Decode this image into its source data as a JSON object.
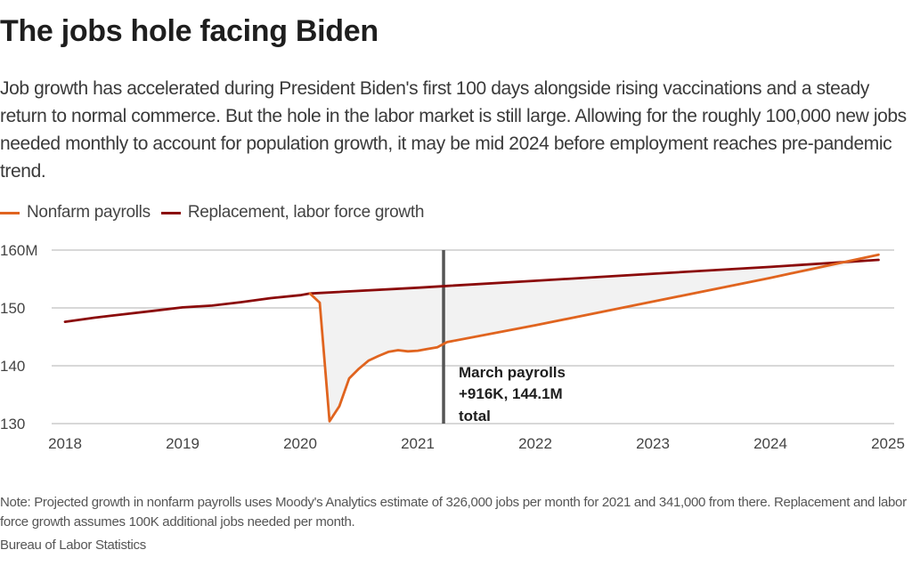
{
  "header": {
    "title": "The jobs hole facing Biden",
    "subtitle": "Job growth has accelerated during President Biden's first 100 days alongside rising vaccinations and a steady return to normal commerce. But the hole in the labor market is still large. Allowing for the roughly 100,000 new jobs needed monthly to account for population growth, it may be mid 2024 before employment reaches pre-pandemic trend."
  },
  "legend": {
    "items": [
      {
        "label": "Nonfarm payrolls",
        "color": "#e0641f"
      },
      {
        "label": "Replacement, labor force growth",
        "color": "#8b0a0a"
      }
    ]
  },
  "footer": {
    "note": "Note: Projected growth in nonfarm payrolls uses Moody's Analytics estimate of 326,000 jobs per month for 2021 and 341,000 from there. Replacement and labor force growth assumes 100K additional jobs needed per month.",
    "source": "Bureau of Labor Statistics"
  },
  "chart_data": {
    "type": "line",
    "title": "The jobs hole facing Biden",
    "xlabel": "",
    "ylabel": "",
    "xlim": [
      2018,
      2025
    ],
    "ylim": [
      130,
      160
    ],
    "x_ticks": [
      2018,
      2019,
      2020,
      2021,
      2022,
      2023,
      2024,
      2025
    ],
    "x_tick_labels": [
      "2018",
      "2019",
      "2020",
      "2021",
      "2022",
      "2023",
      "2024",
      "2025"
    ],
    "y_ticks": [
      130,
      140,
      150,
      160
    ],
    "y_tick_labels": [
      "130",
      "140",
      "150",
      "160M"
    ],
    "grid": "horizontal",
    "legend_position": "top-left",
    "shaded_gap": {
      "between": [
        "Replacement, labor force growth",
        "Nonfarm payrolls"
      ],
      "color": "#f2f2f2"
    },
    "series": [
      {
        "name": "Replacement, labor force growth",
        "color": "#8b0a0a",
        "x": [
          2018.0,
          2018.25,
          2018.5,
          2018.75,
          2019.0,
          2019.25,
          2019.5,
          2019.75,
          2020.0,
          2020.083,
          2021.0,
          2021.25,
          2022.0,
          2023.0,
          2024.0,
          2024.92
        ],
        "y": [
          147.6,
          148.3,
          148.9,
          149.5,
          150.1,
          150.4,
          151.0,
          151.7,
          152.2,
          152.5,
          153.5,
          153.8,
          154.7,
          155.9,
          157.1,
          158.3
        ]
      },
      {
        "name": "Nonfarm payrolls",
        "color": "#e0641f",
        "x": [
          2020.083,
          2020.167,
          2020.25,
          2020.333,
          2020.417,
          2020.5,
          2020.583,
          2020.667,
          2020.75,
          2020.833,
          2020.917,
          2021.0,
          2021.083,
          2021.167,
          2021.25,
          2022.0,
          2023.0,
          2024.0,
          2024.92
        ],
        "y": [
          152.5,
          150.9,
          130.4,
          133.0,
          137.8,
          139.5,
          140.9,
          141.7,
          142.4,
          142.7,
          142.5,
          142.6,
          142.9,
          143.2,
          144.1,
          147.0,
          151.1,
          155.2,
          159.2
        ]
      }
    ],
    "annotations": [
      {
        "x": 2021.22,
        "type": "vertical-line",
        "lines": [
          "March payrolls",
          "+916K, 144.1M",
          "total"
        ]
      }
    ]
  }
}
